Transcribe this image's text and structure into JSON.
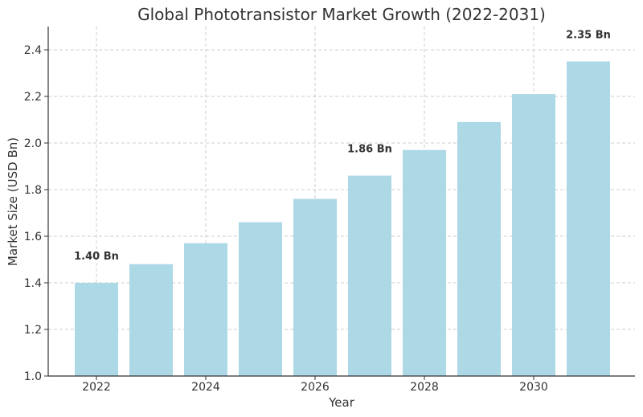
{
  "chart_data": {
    "type": "bar",
    "title": "Global Phototransistor Market Growth (2022-2031)",
    "xlabel": "Year",
    "ylabel": "Market Size (USD Bn)",
    "x": [
      2022,
      2023,
      2024,
      2025,
      2026,
      2027,
      2028,
      2029,
      2030,
      2031
    ],
    "values": [
      1.4,
      1.48,
      1.57,
      1.66,
      1.76,
      1.86,
      1.97,
      2.09,
      2.21,
      2.35
    ],
    "ylim": [
      1.0,
      2.5
    ],
    "xticks": [
      2022,
      2024,
      2026,
      2028,
      2030
    ],
    "yticks": [
      1.0,
      1.2,
      1.4,
      1.6,
      1.8,
      2.0,
      2.2,
      2.4
    ],
    "ytick_labels": [
      "1.0",
      "1.2",
      "1.4",
      "1.6",
      "1.8",
      "2.0",
      "2.2",
      "2.4"
    ],
    "data_labels": [
      {
        "x": 2022,
        "text": "1.40 Bn"
      },
      {
        "x": 2027,
        "text": "1.86 Bn"
      },
      {
        "x": 2031,
        "text": "2.35 Bn"
      }
    ],
    "bar_color": "#add8e6",
    "grid": true
  }
}
